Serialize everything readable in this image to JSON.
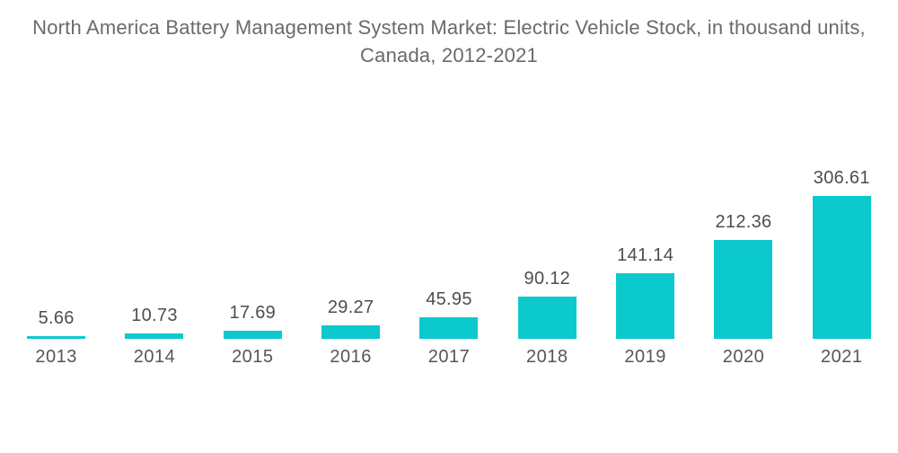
{
  "title": {
    "text": "North America Battery Management System Market: Electric Vehicle Stock, in thousand units, Canada, 2012-2021"
  },
  "colors": {
    "bar": "#0cc9ce",
    "title_text": "#696a6e",
    "value_label_text": "#4c4e51",
    "year_label_text": "#55565a",
    "background": "#ffffff"
  },
  "chart_data": {
    "type": "bar",
    "title": "North America Battery Management System Market: Electric Vehicle Stock, in thousand units, Canada, 2012-2021",
    "categories": [
      "2013",
      "2014",
      "2015",
      "2016",
      "2017",
      "2018",
      "2019",
      "2020",
      "2021"
    ],
    "values": [
      5.66,
      10.73,
      17.69,
      29.27,
      45.95,
      90.12,
      141.14,
      212.36,
      306.61
    ],
    "value_labels": [
      "5.66",
      "10.73",
      "17.69",
      "29.27",
      "45.95",
      "90.12",
      "141.14",
      "212.36",
      "306.61"
    ],
    "series_name": "Electric Vehicle Stock (thousand units)",
    "xlabel": "",
    "ylabel": "",
    "ylim": [
      0,
      306.61
    ],
    "grid": false,
    "legend": false,
    "axis_lines": false,
    "bar_color": "#0cc9ce",
    "orientation": "vertical",
    "value_label_position": "above-bar",
    "category_label_position": "below-bar"
  }
}
